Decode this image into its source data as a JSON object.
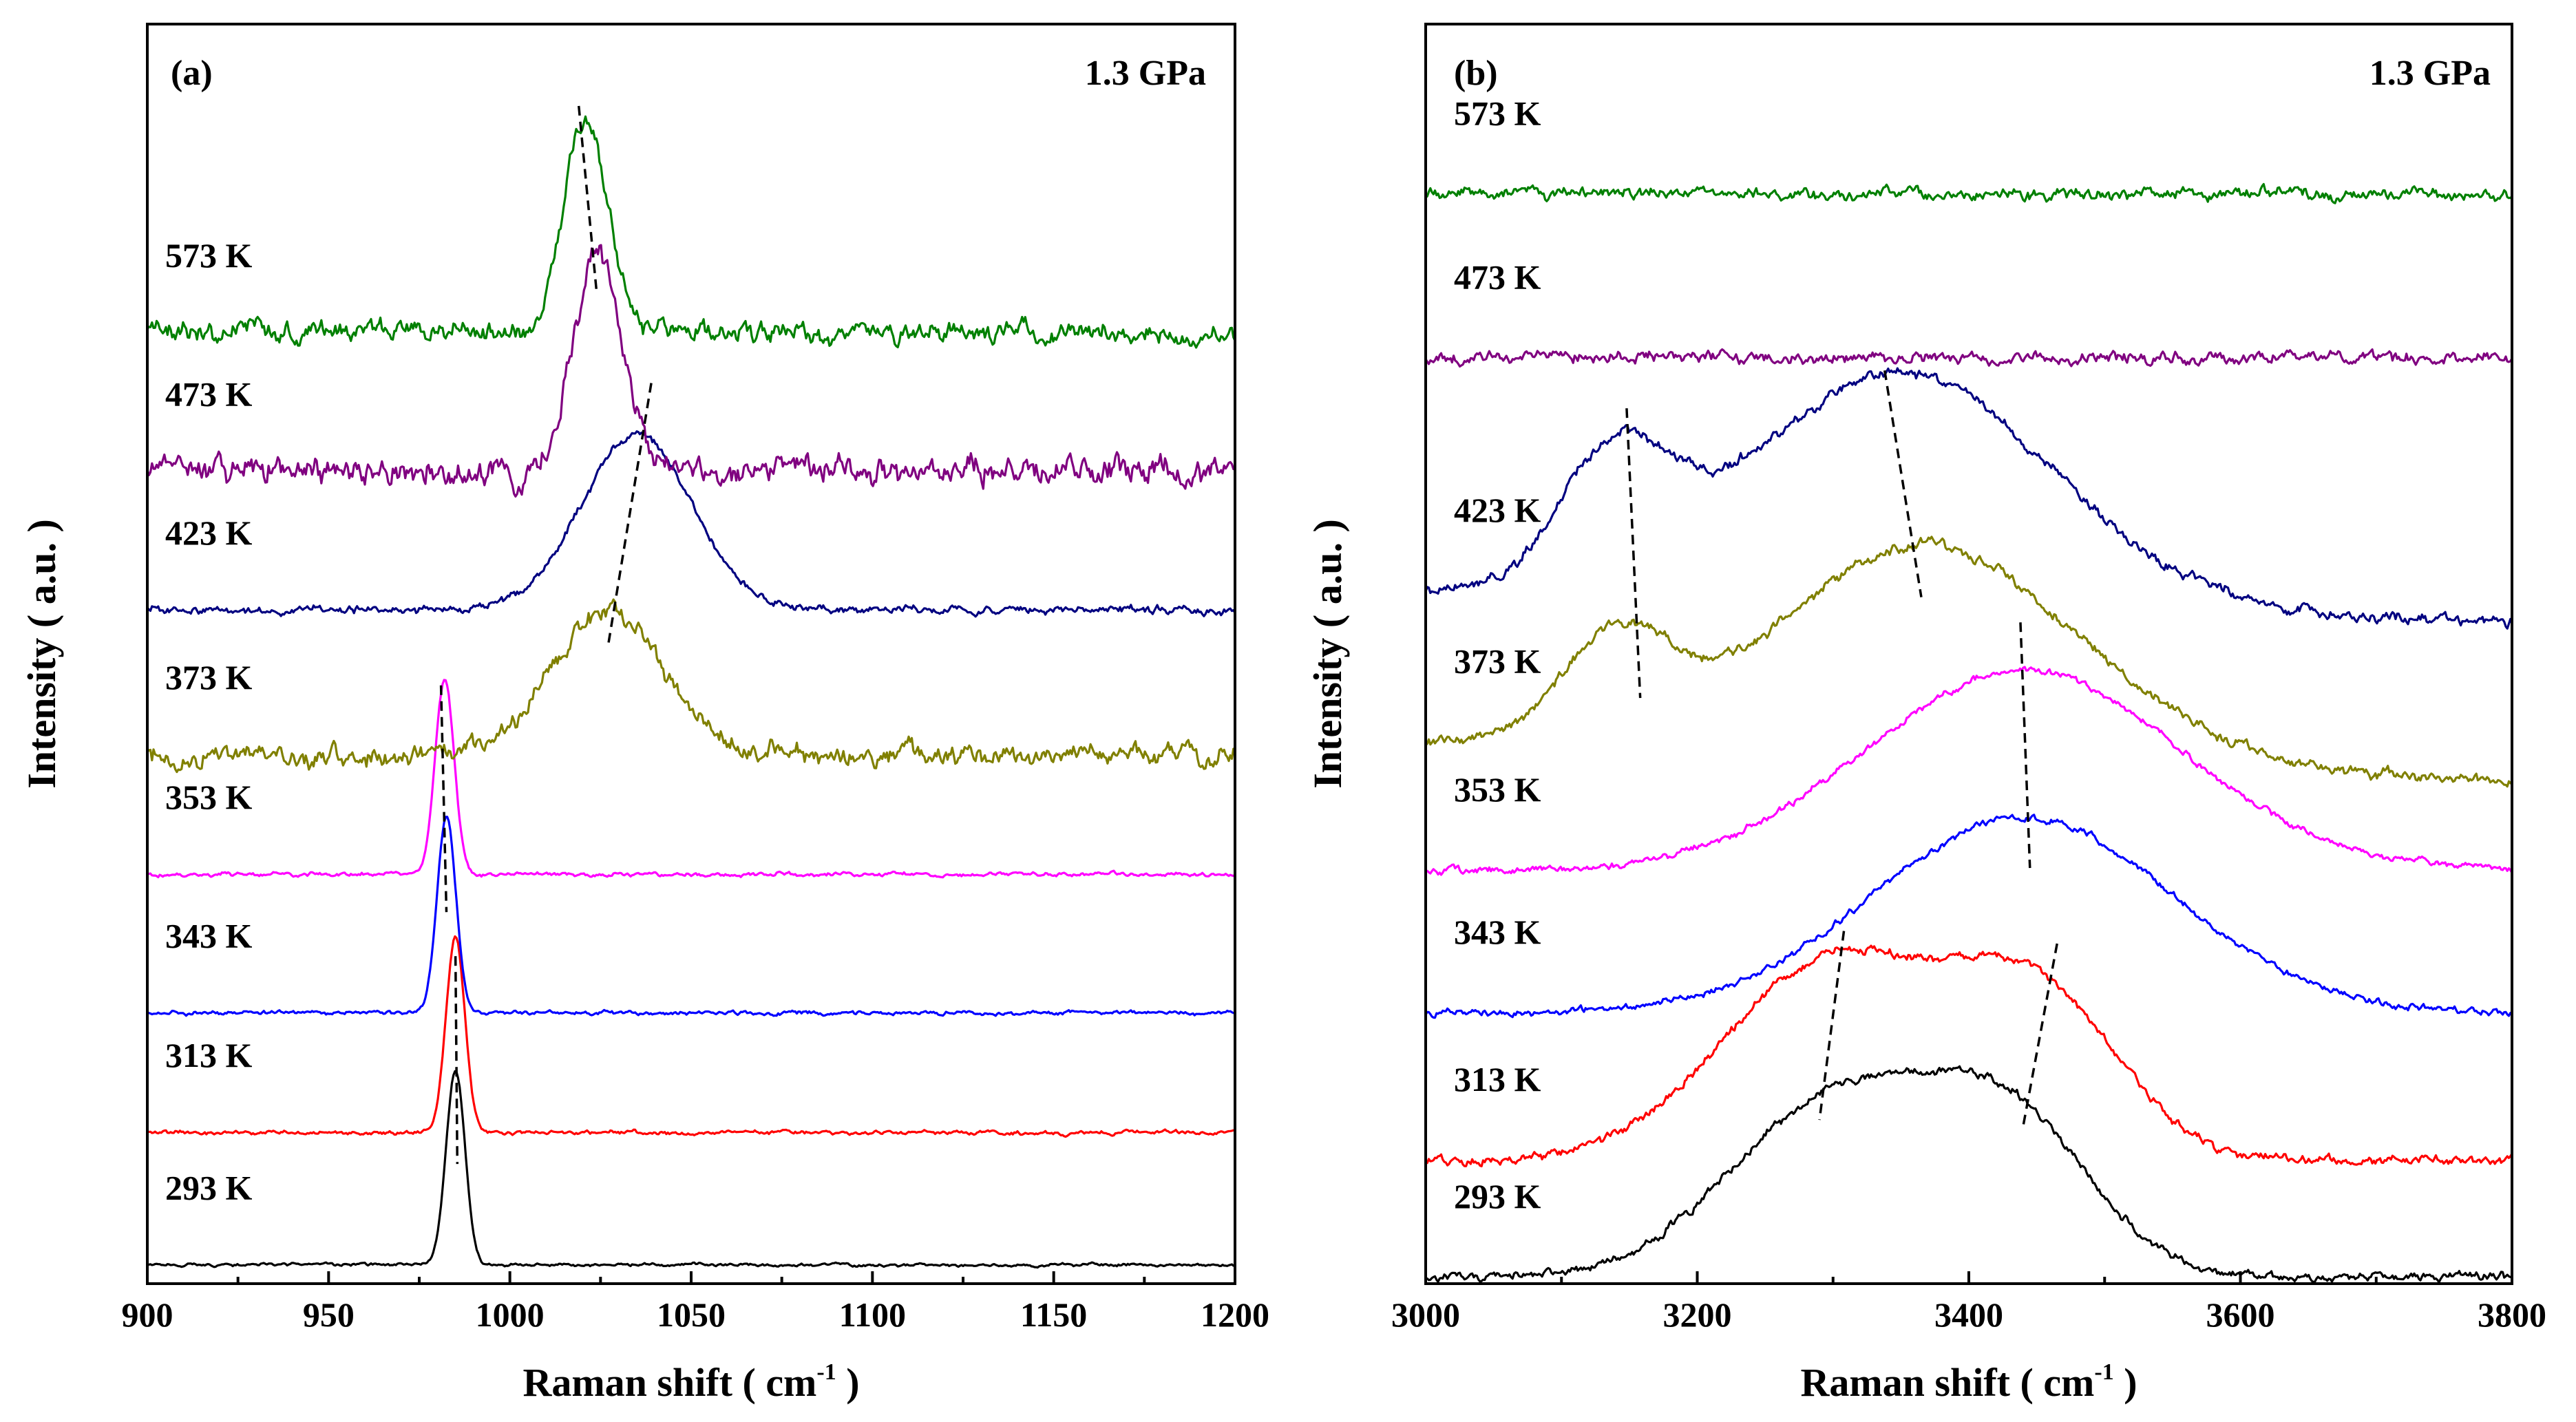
{
  "chart_data": [
    {
      "type": "line",
      "panel_label": "(a)",
      "annotation": "1.3 GPa",
      "xlabel": "Raman shift",
      "xlabel_unit": "( cm",
      "xlabel_unit_exp": "-1",
      "xlabel_unit_close": " )",
      "ylabel": "Intensity ( a.u. )",
      "xlim": [
        900,
        1200
      ],
      "ylim": [
        0,
        100
      ],
      "xticks": [
        900,
        950,
        1000,
        1050,
        1100,
        1150,
        1200
      ],
      "xtick_labels": [
        "900",
        "950",
        "1000",
        "1050",
        "1100",
        "1150",
        "1200"
      ],
      "series": [
        {
          "name": "293 K",
          "color": "#000000",
          "offset": 1.5,
          "noise": 0.15,
          "baseline_tilt": 0,
          "peaks": [
            {
              "x": 985,
              "h": 15.5,
              "w": 2.6
            }
          ]
        },
        {
          "name": "313 K",
          "color": "#ff0000",
          "offset": 12.0,
          "noise": 0.2,
          "baseline_tilt": 0,
          "peaks": [
            {
              "x": 985,
              "h": 15.5,
              "w": 2.6
            }
          ]
        },
        {
          "name": "343 K",
          "color": "#0000ff",
          "offset": 21.5,
          "noise": 0.2,
          "baseline_tilt": 0,
          "peaks": [
            {
              "x": 982.5,
              "h": 15.5,
              "w": 2.6
            }
          ]
        },
        {
          "name": "353 K",
          "color": "#ff00ff",
          "offset": 32.5,
          "noise": 0.2,
          "baseline_tilt": 0,
          "peaks": [
            {
              "x": 982,
              "h": 15.5,
              "w": 2.6
            }
          ]
        },
        {
          "name": "373 K",
          "color": "#808000",
          "offset": 42.0,
          "noise": 1.0,
          "baseline_tilt": 0,
          "peaks": [
            {
              "x": 1027,
              "h": 11.5,
              "w": 15
            }
          ]
        },
        {
          "name": "423 K",
          "color": "#000080",
          "offset": 53.5,
          "noise": 0.4,
          "baseline_tilt": 0,
          "peaks": [
            {
              "x": 1035,
              "h": 14.0,
              "w": 15
            }
          ]
        },
        {
          "name": "473 K",
          "color": "#800080",
          "offset": 64.5,
          "noise": 1.4,
          "baseline_tilt": 0,
          "peaks": [
            {
              "x": 1024,
              "h": 17.5,
              "w": 6.5
            }
          ]
        },
        {
          "name": "573 K",
          "color": "#008000",
          "offset": 75.5,
          "noise": 1.0,
          "baseline_tilt": 0,
          "peaks": [
            {
              "x": 1021,
              "h": 17.0,
              "w": 6
            }
          ]
        }
      ],
      "guides": [
        {
          "from": [
            1019,
            93.5
          ],
          "to": [
            1024,
            78.5
          ]
        },
        {
          "from": [
            1039,
            71.5
          ],
          "to": [
            1027,
            50.5
          ]
        },
        {
          "from": [
            981,
            47.5
          ],
          "to": [
            982.5,
            29.5
          ]
        },
        {
          "from": [
            985,
            26.0
          ],
          "to": [
            985.5,
            9.5
          ]
        }
      ]
    },
    {
      "type": "line",
      "panel_label": "(b)",
      "annotation": "1.3 GPa",
      "xlabel": "Raman shift",
      "xlabel_unit": "( cm",
      "xlabel_unit_exp": "-1",
      "xlabel_unit_close": " )",
      "ylabel": "Intensity ( a.u. )",
      "xlim": [
        3000,
        3800
      ],
      "ylim": [
        0,
        100
      ],
      "xticks": [
        3000,
        3200,
        3400,
        3600,
        3800
      ],
      "xtick_labels": [
        "3000",
        "3200",
        "3400",
        "3600",
        "3800"
      ],
      "series": [
        {
          "name": "293 K",
          "color": "#000000",
          "offset": 0.5,
          "noise": 0.45,
          "baseline_tilt": 0.0,
          "peaks": [
            {
              "x": 3300,
              "h": 14.0,
              "w": 75
            },
            {
              "x": 3430,
              "h": 12.0,
              "w": 60
            }
          ]
        },
        {
          "name": "313 K",
          "color": "#ff0000",
          "offset": 9.8,
          "noise": 0.45,
          "baseline_tilt": 0.0,
          "peaks": [
            {
              "x": 3300,
              "h": 16.0,
              "w": 80
            },
            {
              "x": 3450,
              "h": 12.5,
              "w": 60
            }
          ]
        },
        {
          "name": "343 K",
          "color": "#0000ff",
          "offset": 21.5,
          "noise": 0.35,
          "baseline_tilt": 0.0,
          "peaks": [
            {
              "x": 3440,
              "h": 15.5,
              "w": 110
            }
          ]
        },
        {
          "name": "353 K",
          "color": "#ff00ff",
          "offset": 32.8,
          "noise": 0.35,
          "baseline_tilt": 0.0,
          "peaks": [
            {
              "x": 3440,
              "h": 16.0,
              "w": 115
            }
          ]
        },
        {
          "name": "373 K",
          "color": "#808000",
          "offset": 43.0,
          "noise": 0.55,
          "baseline_tilt": -3.0,
          "peaks": [
            {
              "x": 3140,
              "h": 8.0,
              "w": 40
            },
            {
              "x": 3370,
              "h": 17.0,
              "w": 110
            }
          ]
        },
        {
          "name": "423 K",
          "color": "#000080",
          "offset": 55.0,
          "noise": 0.55,
          "baseline_tilt": -2.5,
          "peaks": [
            {
              "x": 3140,
              "h": 10.0,
              "w": 40
            },
            {
              "x": 3350,
              "h": 18.5,
              "w": 110
            }
          ]
        },
        {
          "name": "473 K",
          "color": "#800080",
          "offset": 73.5,
          "noise": 0.6,
          "baseline_tilt": 0,
          "peaks": []
        },
        {
          "name": "573 K",
          "color": "#008000",
          "offset": 86.5,
          "noise": 0.6,
          "baseline_tilt": 0,
          "peaks": []
        }
      ],
      "guides": [
        {
          "from": [
            3148,
            69.5
          ],
          "to": [
            3158,
            46.5
          ]
        },
        {
          "from": [
            3338,
            72.5
          ],
          "to": [
            3365,
            54.5
          ]
        },
        {
          "from": [
            3438,
            52.5
          ],
          "to": [
            3445,
            33.0
          ]
        },
        {
          "from": [
            3308,
            28.0
          ],
          "to": [
            3290,
            13.0
          ]
        },
        {
          "from": [
            3465,
            27.0
          ],
          "to": [
            3440,
            12.5
          ]
        }
      ]
    }
  ]
}
